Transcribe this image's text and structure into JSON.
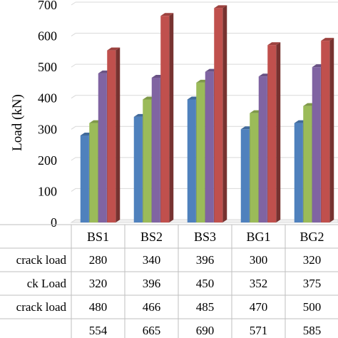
{
  "chart_data": {
    "type": "bar",
    "ylabel": "Load (kN)",
    "ylim": [
      0,
      700
    ],
    "yticks": [
      0,
      100,
      200,
      300,
      400,
      500,
      600,
      700
    ],
    "categories": [
      "BS1",
      "BS2",
      "BS3",
      "BG1",
      "BG2"
    ],
    "series": [
      {
        "name": "crack load",
        "color": "#4f81bd",
        "values": [
          280,
          340,
          396,
          300,
          320
        ]
      },
      {
        "name": "ck Load",
        "color": "#9bbb59",
        "values": [
          320,
          396,
          450,
          352,
          375
        ]
      },
      {
        "name": "crack load",
        "color": "#8064a2",
        "values": [
          480,
          466,
          485,
          470,
          500
        ]
      },
      {
        "name": "",
        "color": "#c0504d",
        "values": [
          554,
          665,
          690,
          571,
          585
        ]
      }
    ],
    "grid": true,
    "legend": "data table below chart"
  }
}
